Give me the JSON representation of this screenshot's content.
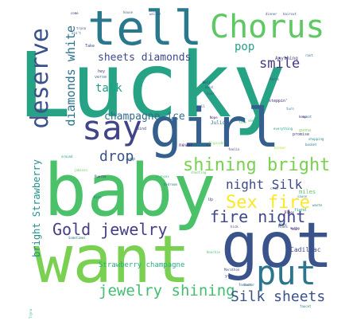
{
  "words": [
    {
      "text": "Lucky",
      "color": "#25a384"
    },
    {
      "text": "baby",
      "color": "#4bc16a"
    },
    {
      "text": "want",
      "color": "#7ad151"
    },
    {
      "text": "got",
      "color": "#3a538b"
    },
    {
      "text": "girl",
      "color": "#355f8d"
    },
    {
      "text": "tell",
      "color": "#2a788e"
    },
    {
      "text": "Chorus",
      "color": "#5ec962"
    },
    {
      "text": "put",
      "color": "#2b758e"
    },
    {
      "text": "say",
      "color": "#414487"
    },
    {
      "text": "deserve",
      "color": "#3b518b"
    },
    {
      "text": "shining bright",
      "color": "#7ad151"
    },
    {
      "text": "Sex fire",
      "color": "#fde725"
    },
    {
      "text": "fire night",
      "color": "#3f4788"
    },
    {
      "text": "Gold jewelry",
      "color": "#433e85"
    },
    {
      "text": "jewelry shining",
      "color": "#42be71"
    },
    {
      "text": "Silk sheets",
      "color": "#3b518b"
    },
    {
      "text": "night Silk",
      "color": "#3e4a89"
    },
    {
      "text": "drop",
      "color": "#3b528b"
    },
    {
      "text": "smile",
      "color": "#453781"
    },
    {
      "text": "diamonds white",
      "color": "#2c728e"
    },
    {
      "text": "champagne ice",
      "color": "#2f6c8e"
    },
    {
      "text": "sheets diamonds",
      "color": "#3e4989"
    },
    {
      "text": "talk",
      "color": "#1f9e89"
    },
    {
      "text": "pop",
      "color": "#20a386"
    },
    {
      "text": "bright Strawberry",
      "color": "#21908d"
    },
    {
      "text": "Strawberry champagne",
      "color": "#27ad81"
    },
    {
      "text": "Cadillac",
      "color": "#3e4c8a"
    },
    {
      "text": "miles",
      "color": "#5cc863"
    },
    {
      "text": "fiend",
      "color": "#22a785"
    },
    {
      "text": "gonna",
      "color": "#7fd34e"
    },
    {
      "text": "never",
      "color": "#482677"
    },
    {
      "text": "Julio",
      "color": "#2d718e"
    },
    {
      "text": "Anything",
      "color": "#3f4788"
    },
    {
      "text": "mind",
      "color": "#3d4e8a"
    },
    {
      "text": "hey",
      "color": "#443983"
    },
    {
      "text": "verse",
      "color": "#31678e"
    },
    {
      "text": "Take",
      "color": "#404688"
    },
    {
      "text": "promise",
      "color": "#46327e"
    },
    {
      "text": "Paris",
      "color": "#3f4889"
    },
    {
      "text": "Jump",
      "color": "#2e6d8e"
    },
    {
      "text": "Puerto",
      "color": "#481f70"
    },
    {
      "text": "sweat",
      "color": "#2a768e"
    },
    {
      "text": "turn",
      "color": "#2b748e"
    },
    {
      "text": "Tryna",
      "color": "#35b779"
    },
    {
      "text": "feelin",
      "color": "#3f4788"
    },
    {
      "text": "Nope",
      "color": "#471365"
    },
    {
      "text": "rant",
      "color": "#2f6c8e"
    },
    {
      "text": "come",
      "color": "#482878"
    },
    {
      "text": "house",
      "color": "#3b528b"
    },
    {
      "text": "wallet",
      "color": "#365c8d"
    },
    {
      "text": "dinner",
      "color": "#38598c"
    },
    {
      "text": "haircut",
      "color": "#3f4788"
    },
    {
      "text": "tryna",
      "color": "#3e4a89"
    },
    {
      "text": "Well",
      "color": "#453882"
    },
    {
      "text": "bald",
      "color": "#3b528b"
    },
    {
      "text": "bank",
      "color": "#35608d"
    },
    {
      "text": "tall",
      "color": "#404387"
    },
    {
      "text": "shopping",
      "color": "#26828e"
    },
    {
      "text": "basket",
      "color": "#2a788e"
    },
    {
      "text": "everything",
      "color": "#1f998a"
    },
    {
      "text": "kicker",
      "color": "#b5de2b"
    },
    {
      "text": "fire",
      "color": "#48c16e"
    },
    {
      "text": "sexy",
      "color": "#34b679"
    },
    {
      "text": "bedroom",
      "color": "#287c8e"
    },
    {
      "text": "chances",
      "color": "#29af7f"
    },
    {
      "text": "around",
      "color": "#1fa088"
    },
    {
      "text": "jamison",
      "color": "#6ccd5a"
    },
    {
      "text": "Rico",
      "color": "#2c728e"
    },
    {
      "text": "cause",
      "color": "#26828e"
    },
    {
      "text": "Sometimes",
      "color": "#2d708e"
    },
    {
      "text": "faucet",
      "color": "#2d718e"
    },
    {
      "text": "steppin'",
      "color": "#482475"
    },
    {
      "text": "mutha",
      "color": "#3b528b"
    },
    {
      "text": "Baby",
      "color": "#3b528b"
    },
    {
      "text": "flipside",
      "color": "#75d054"
    },
    {
      "text": "drinkin",
      "color": "#21918c"
    },
    {
      "text": "keep",
      "color": "#46337f"
    },
    {
      "text": "Yeah",
      "color": "#440154"
    },
    {
      "text": "Marathon",
      "color": "#3e4a89"
    },
    {
      "text": "Mimes",
      "color": "#365c8d"
    },
    {
      "text": "Up",
      "color": "#365d8d"
    },
    {
      "text": "ain't",
      "color": "#31688e"
    },
    {
      "text": "crib",
      "color": "#3e4c8a"
    },
    {
      "text": "Hoochie",
      "color": "#50c46a"
    },
    {
      "text": "Blues",
      "color": "#440154"
    },
    {
      "text": "waste",
      "color": "#2c728e"
    },
    {
      "text": "doctor",
      "color": "#2c728e"
    },
    {
      "text": "forever",
      "color": "#3e4989"
    },
    {
      "text": "shooting",
      "color": "#5ac864"
    },
    {
      "text": "yra",
      "color": "#3b518b"
    },
    {
      "text": "hick",
      "color": "#3e4989"
    }
  ]
}
